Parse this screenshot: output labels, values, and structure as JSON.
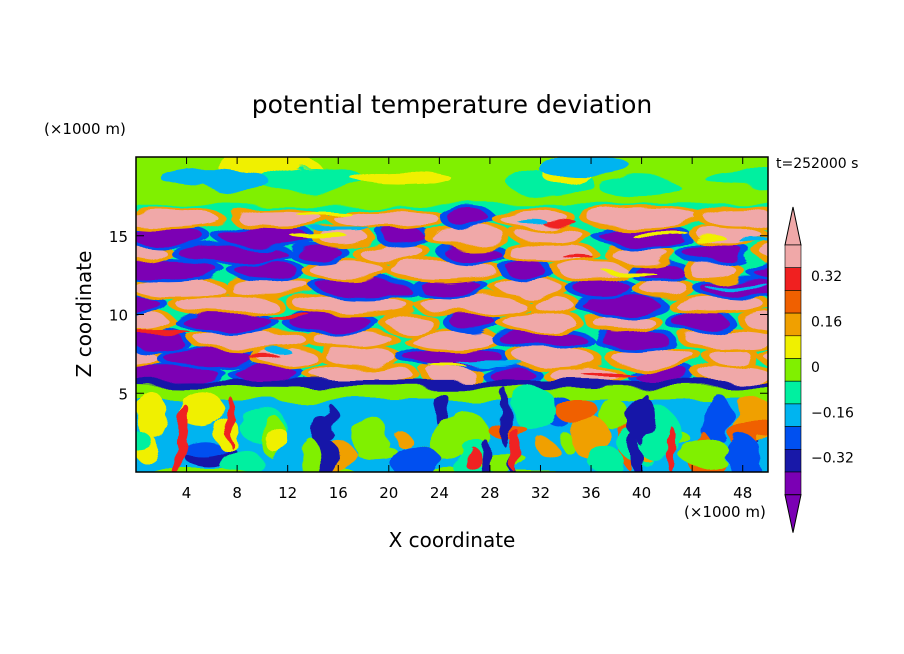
{
  "chart_data": {
    "type": "heatmap",
    "title": "potential temperature deviation",
    "xlabel": "X coordinate",
    "ylabel": "Z coordinate",
    "x_unit": "(×1000 m)",
    "y_unit": "(×1000 m)",
    "time_label": "t=252000 s",
    "xlim": [
      0,
      50
    ],
    "ylim": [
      0,
      20
    ],
    "x_ticks": [
      "4",
      "8",
      "12",
      "16",
      "20",
      "24",
      "28",
      "32",
      "36",
      "40",
      "44",
      "48"
    ],
    "y_ticks": [
      "5",
      "10",
      "15"
    ],
    "colorbar": {
      "levels": [
        -0.4,
        -0.32,
        -0.24,
        -0.16,
        -0.08,
        0,
        0.08,
        0.16,
        0.24,
        0.32,
        0.4
      ],
      "colors": [
        "#7B00B4",
        "#1818A8",
        "#0050F0",
        "#00B4F0",
        "#00F0A0",
        "#80F000",
        "#F0F000",
        "#F0A000",
        "#F06000",
        "#F02020",
        "#F0A8A8"
      ],
      "under_color": "#7B00B4",
      "over_color": "#F0A8A8",
      "tick_labels": [
        "0.32",
        "0.16",
        "0",
        "−0.16",
        "−0.32"
      ]
    },
    "field_description": "layered anomalies: lower layer (0-5) mixed convective cells, stable band near 5, alternating strong positive (pink) and negative (purple) lens-shaped sheets between 5 and 17, weak anomalies above 17"
  }
}
